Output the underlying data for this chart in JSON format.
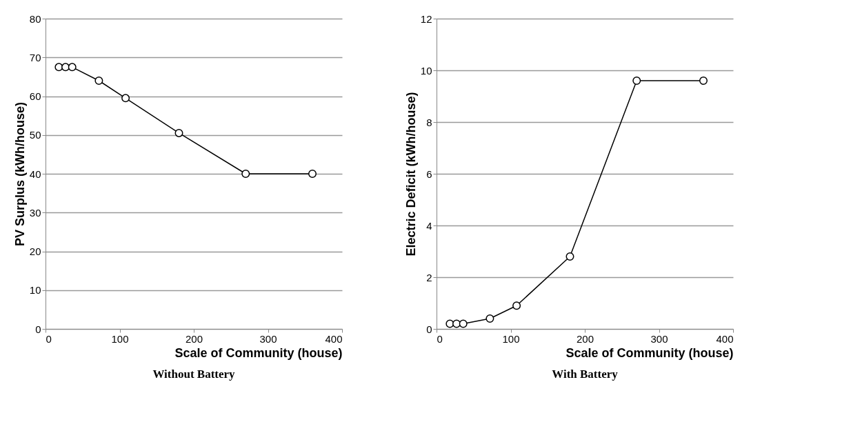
{
  "chart_data": [
    {
      "type": "line",
      "title": "Without Battery",
      "xlabel": "Scale of Community (house)",
      "ylabel": "PV Surplus (kWh/house)",
      "x": [
        18,
        27,
        36,
        72,
        108,
        180,
        270,
        360
      ],
      "series": [
        {
          "color": "#000000",
          "values": [
            67.5,
            67.5,
            67.5,
            64,
            59.5,
            50.5,
            40,
            40
          ]
        }
      ],
      "xlim": [
        0,
        400
      ],
      "xticks": [
        0,
        100,
        200,
        300,
        400
      ],
      "ylim": [
        0,
        80
      ],
      "yticks": [
        0,
        10,
        20,
        30,
        40,
        50,
        60,
        70,
        80
      ],
      "grid": "y",
      "marker": "circle",
      "line_style": "solid"
    },
    {
      "type": "line",
      "title": "With Battery",
      "xlabel": "Scale of Community (house)",
      "ylabel": "Electric Deficit (kWh/house)",
      "x": [
        18,
        27,
        36,
        72,
        108,
        180,
        270,
        360
      ],
      "series": [
        {
          "color": "#000000",
          "values": [
            0.2,
            0.2,
            0.2,
            0.4,
            0.9,
            2.8,
            9.6,
            9.6
          ]
        }
      ],
      "xlim": [
        0,
        400
      ],
      "xticks": [
        0,
        100,
        200,
        300,
        400
      ],
      "ylim": [
        0,
        12
      ],
      "yticks": [
        0,
        2,
        4,
        6,
        8,
        10,
        12
      ],
      "grid": "y",
      "marker": "circle",
      "line_style": "solid"
    }
  ]
}
